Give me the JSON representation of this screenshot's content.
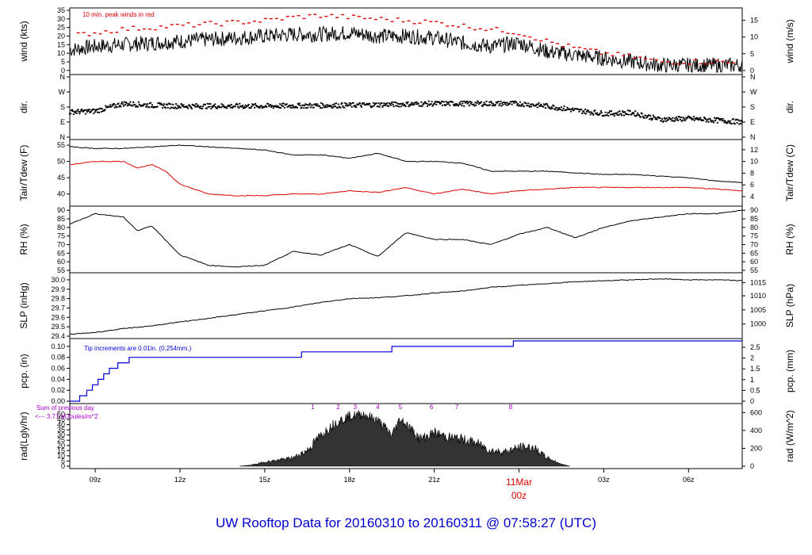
{
  "title": "UW Rooftop Data for 20160310  to  20160311 @ 07:58:27  (UTC)",
  "colors": {
    "frame": "#000000",
    "red": "#dd0000",
    "blue": "#0000dd",
    "purple": "#aa00cc",
    "title": "#0000cc"
  },
  "x_axis": {
    "ticks": [
      {
        "t": 9,
        "label": "09z"
      },
      {
        "t": 12,
        "label": "12z"
      },
      {
        "t": 15,
        "label": "15z"
      },
      {
        "t": 18,
        "label": "18z"
      },
      {
        "t": 21,
        "label": "21z"
      },
      {
        "t": 27,
        "label": "03z"
      },
      {
        "t": 30,
        "label": "06z"
      }
    ],
    "day_marker": {
      "t": 24,
      "date_label": "11Mar",
      "hour_label": "00z"
    },
    "range": [
      8.1,
      31.9
    ]
  },
  "chart_data": [
    {
      "type": "line",
      "panel": "wind",
      "ylabel_left": "wind (kts)",
      "ylabel_right": "wind (m/s)",
      "ylim": [
        -1,
        35
      ],
      "left_ticks": [
        0,
        5,
        10,
        15,
        20,
        25,
        30,
        35
      ],
      "right_ticks": [
        {
          "v": 0,
          "label": "0"
        },
        {
          "v": 9.72,
          "label": "5"
        },
        {
          "v": 19.44,
          "label": "10"
        },
        {
          "v": 29.16,
          "label": "15"
        }
      ],
      "annotation": "10 min. peak winds in red",
      "series": [
        {
          "color": "#000000",
          "x": [
            8.1,
            9,
            10,
            11,
            12,
            13,
            14,
            15,
            16,
            17,
            18,
            19,
            20,
            21,
            22,
            23,
            24,
            25,
            26,
            27,
            28,
            29,
            30,
            31,
            31.9
          ],
          "y": [
            12,
            14,
            15,
            16,
            17,
            18,
            19,
            20,
            21,
            21,
            22,
            20,
            20,
            19,
            16,
            14,
            16,
            11,
            9,
            7,
            5,
            3,
            3,
            3,
            3
          ],
          "noise": 4.5
        },
        {
          "color": "#dd0000",
          "style": "dash",
          "x": [
            8.1,
            9,
            10,
            11,
            12,
            13,
            14,
            15,
            16,
            17,
            18,
            19,
            20,
            21,
            22,
            23,
            24,
            25,
            26,
            27,
            28,
            29,
            30,
            31,
            31.9
          ],
          "y": [
            20,
            22,
            24,
            25,
            26,
            27,
            28,
            29,
            31,
            32,
            31,
            30,
            29,
            28,
            26,
            24,
            22,
            17,
            13,
            10,
            8,
            5,
            5,
            5,
            4
          ]
        }
      ]
    },
    {
      "type": "scatter",
      "panel": "dir",
      "ylabel_left": "dir.",
      "ylabel_right": "dir.",
      "ylim": [
        0,
        360
      ],
      "left_ticks": [
        {
          "v": 0,
          "label": "N"
        },
        {
          "v": 90,
          "label": "E"
        },
        {
          "v": 180,
          "label": "S"
        },
        {
          "v": 270,
          "label": "W"
        },
        {
          "v": 360,
          "label": "N"
        }
      ],
      "right_ticks": [
        {
          "v": 0,
          "label": "N"
        },
        {
          "v": 90,
          "label": "E"
        },
        {
          "v": 180,
          "label": "S"
        },
        {
          "v": 270,
          "label": "W"
        },
        {
          "v": 360,
          "label": "N"
        }
      ],
      "series": [
        {
          "color": "#000000",
          "x": [
            8.1,
            9,
            10,
            11,
            12,
            15,
            18,
            21,
            24,
            25,
            26,
            27,
            28,
            29,
            30,
            31,
            31.9
          ],
          "y": [
            150,
            155,
            200,
            190,
            185,
            185,
            190,
            200,
            200,
            185,
            160,
            140,
            145,
            105,
            110,
            100,
            90
          ],
          "noise": 15
        }
      ]
    },
    {
      "type": "line",
      "panel": "temp",
      "ylabel_left": "Tair/Tdew (F)",
      "ylabel_right": "Tair/Tdew (C)",
      "ylim": [
        37,
        56
      ],
      "left_ticks": [
        40,
        45,
        50,
        55
      ],
      "right_ticks": [
        {
          "v": 39.2,
          "label": "4"
        },
        {
          "v": 42.8,
          "label": "6"
        },
        {
          "v": 46.4,
          "label": "8"
        },
        {
          "v": 50,
          "label": "10"
        },
        {
          "v": 53.6,
          "label": "12"
        }
      ],
      "series": [
        {
          "name": "Tair",
          "color": "#000000",
          "x": [
            8.1,
            9,
            10,
            11,
            12,
            13,
            14,
            15,
            16,
            17,
            18,
            19,
            20,
            21,
            22,
            23,
            24,
            25,
            26,
            27,
            28,
            29,
            30,
            31,
            31.9
          ],
          "y": [
            54.5,
            54,
            54,
            54.5,
            55,
            54.5,
            54,
            53.5,
            52,
            52,
            51,
            52.5,
            50,
            50,
            49.5,
            47,
            47,
            47,
            46.5,
            46,
            46,
            45.5,
            45,
            44,
            43.5
          ]
        },
        {
          "name": "Tdew",
          "color": "#dd0000",
          "x": [
            8.1,
            9,
            10,
            10.5,
            11,
            11.5,
            12,
            13,
            14,
            15,
            16,
            17,
            18,
            19,
            20,
            21,
            22,
            23,
            24,
            25,
            26,
            27,
            28,
            29,
            30,
            31,
            31.9
          ],
          "y": [
            49,
            50,
            50,
            48,
            49,
            47,
            43,
            40,
            39.5,
            39.5,
            40,
            40,
            41,
            40.5,
            42,
            40,
            41.5,
            40,
            41,
            41.5,
            42,
            42,
            42,
            42,
            42,
            41.5,
            41
          ]
        }
      ]
    },
    {
      "type": "line",
      "panel": "rh",
      "ylabel_left": "RH (%)",
      "ylabel_right": "RH (%)",
      "ylim": [
        55,
        91
      ],
      "left_ticks": [
        55,
        60,
        65,
        70,
        75,
        80,
        85,
        90
      ],
      "right_ticks": [
        {
          "v": 55,
          "label": "55"
        },
        {
          "v": 60,
          "label": "60"
        },
        {
          "v": 65,
          "label": "65"
        },
        {
          "v": 70,
          "label": "70"
        },
        {
          "v": 75,
          "label": "75"
        },
        {
          "v": 80,
          "label": "80"
        },
        {
          "v": 85,
          "label": "85"
        },
        {
          "v": 90,
          "label": "90"
        }
      ],
      "series": [
        {
          "color": "#000000",
          "x": [
            8.1,
            9,
            10,
            10.5,
            11,
            12,
            13,
            14,
            15,
            16,
            17,
            18,
            19,
            20,
            21,
            22,
            23,
            24,
            25,
            26,
            27,
            28,
            29,
            30,
            31,
            31.9
          ],
          "y": [
            82,
            88,
            86,
            78,
            81,
            64,
            58,
            57,
            58,
            66,
            64,
            70,
            63,
            77,
            73,
            73,
            70,
            76,
            80,
            74,
            80,
            84,
            86,
            88,
            88,
            90
          ]
        }
      ]
    },
    {
      "type": "line",
      "panel": "slp",
      "ylabel_left": "SLP (inHg)",
      "ylabel_right": "SLP (hPa)",
      "ylim": [
        29.4,
        30.05
      ],
      "left_ticks": [
        {
          "v": 29.4,
          "label": "29.4"
        },
        {
          "v": 29.5,
          "label": "29.5"
        },
        {
          "v": 29.6,
          "label": "29.6"
        },
        {
          "v": 29.7,
          "label": "29.7"
        },
        {
          "v": 29.8,
          "label": "29.8"
        },
        {
          "v": 29.9,
          "label": "29.9"
        },
        {
          "v": 30.0,
          "label": "30.0"
        }
      ],
      "right_ticks": [
        {
          "v": 29.53,
          "label": "1000"
        },
        {
          "v": 29.68,
          "label": "1005"
        },
        {
          "v": 29.83,
          "label": "1010"
        },
        {
          "v": 29.97,
          "label": "1015"
        }
      ],
      "series": [
        {
          "color": "#000000",
          "x": [
            8.1,
            9,
            10,
            11,
            12,
            13,
            14,
            15,
            16,
            17,
            18,
            19,
            20,
            21,
            22,
            23,
            24,
            25,
            26,
            27,
            28,
            29,
            30,
            31,
            31.9
          ],
          "y": [
            29.42,
            29.44,
            29.48,
            29.51,
            29.55,
            29.59,
            29.63,
            29.67,
            29.71,
            29.76,
            29.8,
            29.81,
            29.83,
            29.86,
            29.88,
            29.92,
            29.94,
            29.96,
            29.98,
            29.99,
            30.0,
            30.01,
            30.0,
            30.0,
            29.99
          ]
        }
      ]
    },
    {
      "type": "line",
      "panel": "pcp",
      "ylabel_left": "pcp. (in)",
      "ylabel_right": "pcp. (mm)",
      "ylim": [
        0,
        0.11
      ],
      "left_ticks": [
        {
          "v": 0,
          "label": "0.00"
        },
        {
          "v": 0.02,
          "label": "0.02"
        },
        {
          "v": 0.04,
          "label": "0.04"
        },
        {
          "v": 0.06,
          "label": "0.06"
        },
        {
          "v": 0.08,
          "label": "0.08"
        },
        {
          "v": 0.1,
          "label": "0.10"
        }
      ],
      "right_ticks": [
        {
          "v": 0,
          "label": "0"
        },
        {
          "v": 0.0197,
          "label": "0.5"
        },
        {
          "v": 0.0394,
          "label": "1"
        },
        {
          "v": 0.059,
          "label": "1.5"
        },
        {
          "v": 0.0787,
          "label": "2"
        },
        {
          "v": 0.0984,
          "label": "2.5"
        }
      ],
      "annotation": "Tip increments are 0.01in. (0.254mm.)",
      "series": [
        {
          "color": "#0000dd",
          "step": true,
          "x": [
            8.1,
            8.45,
            8.7,
            8.9,
            9.1,
            9.3,
            9.5,
            9.8,
            10.2,
            16.3,
            19.5,
            23.8,
            31.9
          ],
          "y": [
            0,
            0.01,
            0.02,
            0.03,
            0.04,
            0.05,
            0.06,
            0.07,
            0.08,
            0.09,
            0.1,
            0.11,
            0.11
          ]
        }
      ]
    },
    {
      "type": "area",
      "panel": "rad",
      "ylabel_left": "rad(Lgly/hr)",
      "ylabel_right": "rad (W/m^2)",
      "ylim": [
        0,
        58
      ],
      "left_ticks": [
        0,
        5,
        10,
        15,
        20,
        25,
        30,
        35,
        40,
        45,
        50
      ],
      "right_ticks": [
        {
          "v": 0,
          "label": "0"
        },
        {
          "v": 17.2,
          "label": "200"
        },
        {
          "v": 34.4,
          "label": "400"
        },
        {
          "v": 51.6,
          "label": "600"
        }
      ],
      "annotations": [
        "Sum of previous day",
        "<--- 3.71 MJoules/m^2"
      ],
      "hour_labels": [
        {
          "t": 16.7,
          "label": "1"
        },
        {
          "t": 17.6,
          "label": "2"
        },
        {
          "t": 18.2,
          "label": "3"
        },
        {
          "t": 19.0,
          "label": "4"
        },
        {
          "t": 19.8,
          "label": "5"
        },
        {
          "t": 20.9,
          "label": "6"
        },
        {
          "t": 21.8,
          "label": "7"
        },
        {
          "t": 23.7,
          "label": "8"
        }
      ],
      "series": [
        {
          "color": "#000000",
          "x": [
            14.1,
            14.5,
            15,
            15.5,
            16,
            16.5,
            17,
            17.5,
            18,
            18.5,
            19,
            19.5,
            19.8,
            20.2,
            20.5,
            21,
            21.5,
            22,
            22.5,
            23,
            23.5,
            24,
            24.5,
            25,
            25.5,
            25.8
          ],
          "y": [
            0,
            1,
            4,
            6,
            8,
            15,
            30,
            42,
            48,
            50,
            44,
            30,
            46,
            35,
            26,
            32,
            28,
            26,
            22,
            15,
            14,
            18,
            18,
            8,
            2,
            0
          ],
          "noise": 5
        }
      ]
    }
  ]
}
